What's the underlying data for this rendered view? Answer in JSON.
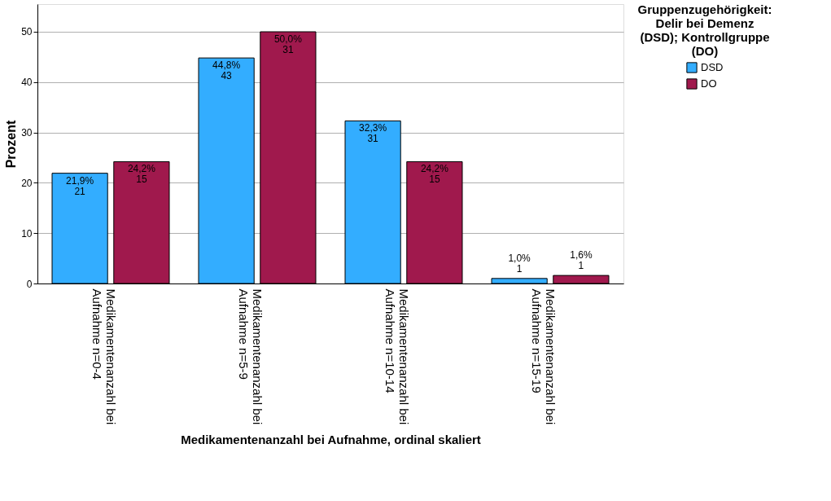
{
  "chart_data": {
    "type": "bar",
    "categories": [
      "Medikamentenanzahl bei Aufnahme n=0-4",
      "Medikamentenanzahl bei Aufnahme n=5-9",
      "Medikamentenanzahl bei Aufnahme n=10-14",
      "Medikamentenanzahl bei Aufnahme n=15-19"
    ],
    "series": [
      {
        "name": "DSD",
        "color": "#33adff",
        "values": [
          21.9,
          44.8,
          32.3,
          1.0
        ],
        "value_labels": [
          "21,9%\n21",
          "44,8%\n43",
          "32,3%\n31",
          "1,0%\n1"
        ]
      },
      {
        "name": "DO",
        "color": "#a0194d",
        "values": [
          24.2,
          50.0,
          24.2,
          1.6
        ],
        "value_labels": [
          "24,2%\n15",
          "50,0%\n31",
          "24,2%\n15",
          "1,6%\n1"
        ]
      }
    ],
    "xlabel": "Medikamentenanzahl bei Aufnahme, ordinal skaliert",
    "ylabel": "Prozent",
    "legend_title": "Gruppenzugehörigkeit: Delir bei Demenz (DSD); Kontrollgruppe (DO)",
    "ylim": [
      0,
      55.5
    ],
    "yticks": [
      0,
      10,
      20,
      30,
      40,
      50
    ],
    "grid": "y",
    "legend": "top right"
  }
}
